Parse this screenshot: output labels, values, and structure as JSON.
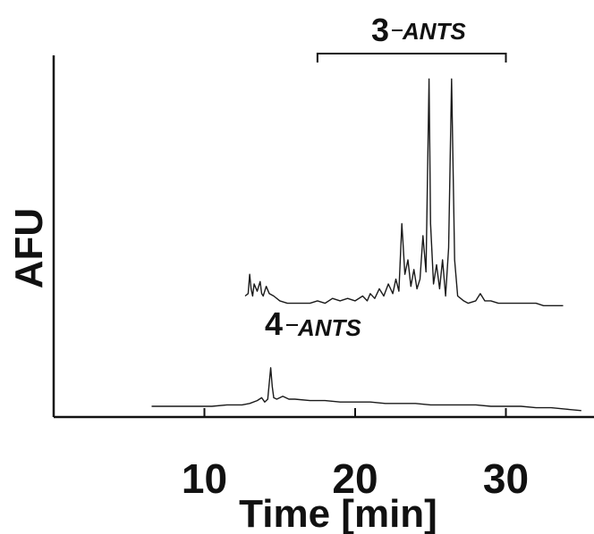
{
  "chart_data": {
    "type": "line",
    "title": "",
    "xlabel": "Time [min]",
    "ylabel": "AFU",
    "xlim": [
      0,
      35
    ],
    "x_ticks": [
      "10",
      "20",
      "30"
    ],
    "x_tick_values": [
      10,
      20,
      30
    ],
    "grid": false,
    "annotations": [
      {
        "number": "3",
        "text": "ANTS",
        "bracket_from": 17.5,
        "bracket_to": 30
      },
      {
        "number": "4",
        "text": "ANTS",
        "x": 14.5
      }
    ],
    "series": [
      {
        "x": [
          12.7,
          12.9,
          13.0,
          13.1,
          13.2,
          13.3,
          13.5,
          13.7,
          13.8,
          13.9,
          14.1,
          14.3,
          14.6,
          15.0,
          15.5,
          16.0,
          16.5,
          17.0,
          17.5,
          18.0,
          18.5,
          19.0,
          19.5,
          20.0,
          20.5,
          20.8,
          21.0,
          21.3,
          21.6,
          21.9,
          22.2,
          22.5,
          22.7,
          22.9,
          23.1,
          23.3,
          23.5,
          23.7,
          23.9,
          24.1,
          24.3,
          24.5,
          24.7,
          24.9,
          25.0,
          25.2,
          25.4,
          25.6,
          25.8,
          26.0,
          26.2,
          26.4,
          26.6,
          26.8,
          27.0,
          27.2,
          27.5,
          28.0,
          28.3,
          28.6,
          29.0,
          29.5,
          30.0,
          31.0,
          32.0,
          32.5,
          33.0,
          33.8
        ],
        "y": [
          0.05,
          0.06,
          0.14,
          0.08,
          0.05,
          0.1,
          0.07,
          0.11,
          0.06,
          0.05,
          0.09,
          0.06,
          0.05,
          0.03,
          0.02,
          0.02,
          0.02,
          0.02,
          0.03,
          0.02,
          0.04,
          0.03,
          0.04,
          0.03,
          0.05,
          0.03,
          0.06,
          0.04,
          0.08,
          0.05,
          0.1,
          0.06,
          0.12,
          0.07,
          0.35,
          0.14,
          0.2,
          0.09,
          0.16,
          0.08,
          0.12,
          0.3,
          0.15,
          0.95,
          0.35,
          0.1,
          0.18,
          0.08,
          0.2,
          0.05,
          0.25,
          0.95,
          0.2,
          0.05,
          0.04,
          0.03,
          0.02,
          0.03,
          0.06,
          0.03,
          0.03,
          0.02,
          0.02,
          0.02,
          0.02,
          0.01,
          0.01,
          0.01
        ]
      },
      {
        "x": [
          6.5,
          7.5,
          8.5,
          9.5,
          10.5,
          11.5,
          12.5,
          13.0,
          13.5,
          13.8,
          14.0,
          14.2,
          14.4,
          14.5,
          14.6,
          14.8,
          15.0,
          15.2,
          15.4,
          15.6,
          16.0,
          17.0,
          18.0,
          19.0,
          20.0,
          21.0,
          22.0,
          23.0,
          24.0,
          25.0,
          26.0,
          27.0,
          28.0,
          29.0,
          30.0,
          31.0,
          32.0,
          33.0,
          34.0,
          35.0
        ],
        "y": [
          0.0,
          0.0,
          0.0,
          0.0,
          0.0,
          0.01,
          0.01,
          0.02,
          0.04,
          0.06,
          0.03,
          0.05,
          0.27,
          0.14,
          0.06,
          0.05,
          0.06,
          0.07,
          0.06,
          0.05,
          0.05,
          0.04,
          0.04,
          0.03,
          0.03,
          0.03,
          0.02,
          0.02,
          0.02,
          0.01,
          0.01,
          0.01,
          0.01,
          0.0,
          0.0,
          0.0,
          -0.01,
          -0.01,
          -0.02,
          -0.03
        ]
      }
    ]
  }
}
